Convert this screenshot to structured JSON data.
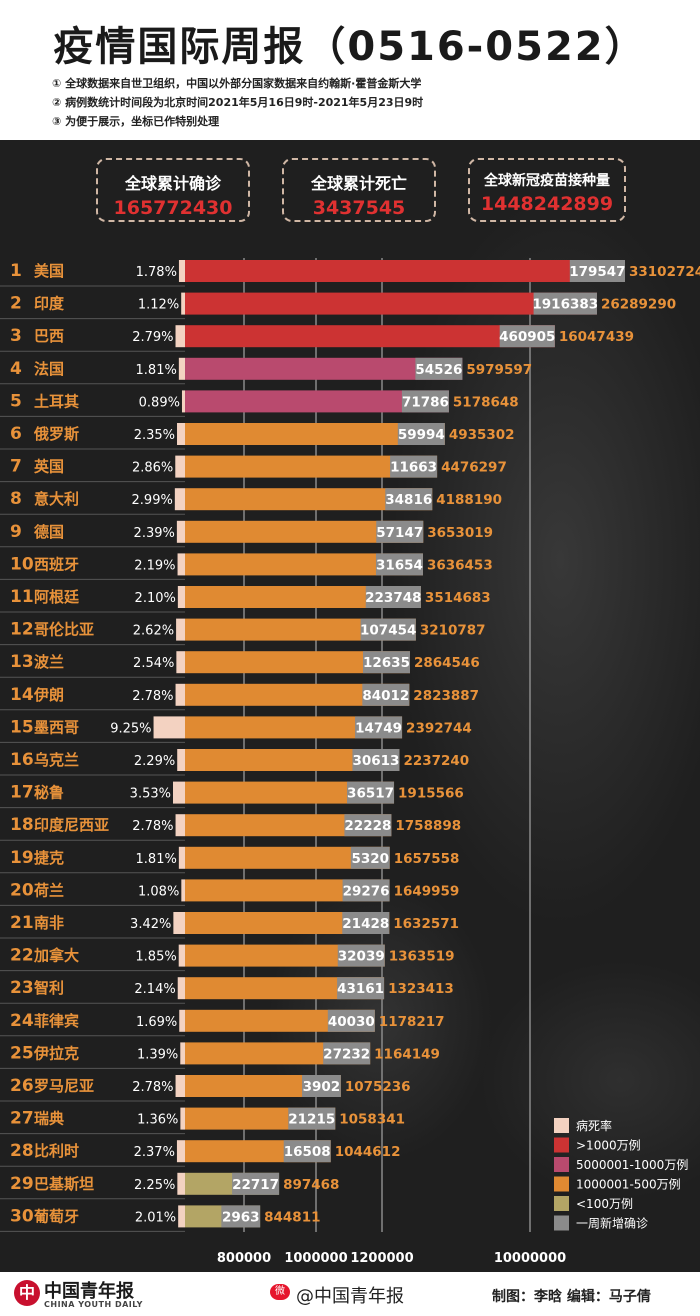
{
  "title": "疫情国际周报（0516-0522）",
  "notes": [
    "① 全球数据来自世卫组织，中国以外部分国家数据来自约翰斯·霍普金斯大学",
    "② 病例数统计时间段为北京时间2021年5月16日9时-2021年5月23日9时",
    "③ 为便于展示，坐标已作特别处理"
  ],
  "stats": [
    {
      "label": "全球累计确诊",
      "value": "165772430"
    },
    {
      "label": "全球累计死亡",
      "value": "3437545"
    },
    {
      "label": "全球新冠疫苗接种量",
      "value": "1448242899"
    }
  ],
  "colors": {
    "over10m": "#cc3333",
    "5m_10m": "#b94a6e",
    "1m_5m": "#e08a32",
    "under1m": "#b3a565",
    "weekly": "#8b8b8b",
    "death_rate": "#f3d2c1",
    "value_text": "#e8923a",
    "stat_value": "#e03131"
  },
  "chart_data": {
    "type": "bar",
    "x_ticks": [
      "800000",
      "1000000",
      "1200000",
      "10000000"
    ],
    "rows": [
      {
        "rank": "1",
        "country": "美国",
        "rate": "1.78%",
        "rate_value": 1.78,
        "weekly": "179547",
        "total": "33102724",
        "total_value": 33102724,
        "category": "over10m"
      },
      {
        "rank": "2",
        "country": "印度",
        "rate": "1.12%",
        "rate_value": 1.12,
        "weekly": "1916383",
        "total": "26289290",
        "total_value": 26289290,
        "category": "over10m"
      },
      {
        "rank": "3",
        "country": "巴西",
        "rate": "2.79%",
        "rate_value": 2.79,
        "weekly": "460905",
        "total": "16047439",
        "total_value": 16047439,
        "category": "over10m"
      },
      {
        "rank": "4",
        "country": "法国",
        "rate": "1.81%",
        "rate_value": 1.81,
        "weekly": "54526",
        "total": "5979597",
        "total_value": 5979597,
        "category": "5m_10m"
      },
      {
        "rank": "5",
        "country": "土耳其",
        "rate": "0.89%",
        "rate_value": 0.89,
        "weekly": "71786",
        "total": "5178648",
        "total_value": 5178648,
        "category": "5m_10m"
      },
      {
        "rank": "6",
        "country": "俄罗斯",
        "rate": "2.35%",
        "rate_value": 2.35,
        "weekly": "59994",
        "total": "4935302",
        "total_value": 4935302,
        "category": "1m_5m"
      },
      {
        "rank": "7",
        "country": "英国",
        "rate": "2.86%",
        "rate_value": 2.86,
        "weekly": "11663",
        "total": "4476297",
        "total_value": 4476297,
        "category": "1m_5m"
      },
      {
        "rank": "8",
        "country": "意大利",
        "rate": "2.99%",
        "rate_value": 2.99,
        "weekly": "34816",
        "total": "4188190",
        "total_value": 4188190,
        "category": "1m_5m"
      },
      {
        "rank": "9",
        "country": "德国",
        "rate": "2.39%",
        "rate_value": 2.39,
        "weekly": "57147",
        "total": "3653019",
        "total_value": 3653019,
        "category": "1m_5m"
      },
      {
        "rank": "10",
        "country": "西班牙",
        "rate": "2.19%",
        "rate_value": 2.19,
        "weekly": "31654",
        "total": "3636453",
        "total_value": 3636453,
        "category": "1m_5m"
      },
      {
        "rank": "11",
        "country": "阿根廷",
        "rate": "2.10%",
        "rate_value": 2.1,
        "weekly": "223748",
        "total": "3514683",
        "total_value": 3514683,
        "category": "1m_5m"
      },
      {
        "rank": "12",
        "country": "哥伦比亚",
        "rate": "2.62%",
        "rate_value": 2.62,
        "weekly": "107454",
        "total": "3210787",
        "total_value": 3210787,
        "category": "1m_5m"
      },
      {
        "rank": "13",
        "country": "波兰",
        "rate": "2.54%",
        "rate_value": 2.54,
        "weekly": "12635",
        "total": "2864546",
        "total_value": 2864546,
        "category": "1m_5m"
      },
      {
        "rank": "14",
        "country": "伊朗",
        "rate": "2.78%",
        "rate_value": 2.78,
        "weekly": "84012",
        "total": "2823887",
        "total_value": 2823887,
        "category": "1m_5m"
      },
      {
        "rank": "15",
        "country": "墨西哥",
        "rate": "9.25%",
        "rate_value": 9.25,
        "weekly": "14749",
        "total": "2392744",
        "total_value": 2392744,
        "category": "1m_5m"
      },
      {
        "rank": "16",
        "country": "乌克兰",
        "rate": "2.29%",
        "rate_value": 2.29,
        "weekly": "30613",
        "total": "2237240",
        "total_value": 2237240,
        "category": "1m_5m"
      },
      {
        "rank": "17",
        "country": "秘鲁",
        "rate": "3.53%",
        "rate_value": 3.53,
        "weekly": "36517",
        "total": "1915566",
        "total_value": 1915566,
        "category": "1m_5m"
      },
      {
        "rank": "18",
        "country": "印度尼西亚",
        "rate": "2.78%",
        "rate_value": 2.78,
        "weekly": "22228",
        "total": "1758898",
        "total_value": 1758898,
        "category": "1m_5m"
      },
      {
        "rank": "19",
        "country": "捷克",
        "rate": "1.81%",
        "rate_value": 1.81,
        "weekly": "5320",
        "total": "1657558",
        "total_value": 1657558,
        "category": "1m_5m"
      },
      {
        "rank": "20",
        "country": "荷兰",
        "rate": "1.08%",
        "rate_value": 1.08,
        "weekly": "29276",
        "total": "1649959",
        "total_value": 1649959,
        "category": "1m_5m"
      },
      {
        "rank": "21",
        "country": "南非",
        "rate": "3.42%",
        "rate_value": 3.42,
        "weekly": "21428",
        "total": "1632571",
        "total_value": 1632571,
        "category": "1m_5m"
      },
      {
        "rank": "22",
        "country": "加拿大",
        "rate": "1.85%",
        "rate_value": 1.85,
        "weekly": "32039",
        "total": "1363519",
        "total_value": 1363519,
        "category": "1m_5m"
      },
      {
        "rank": "23",
        "country": "智利",
        "rate": "2.14%",
        "rate_value": 2.14,
        "weekly": "43161",
        "total": "1323413",
        "total_value": 1323413,
        "category": "1m_5m"
      },
      {
        "rank": "24",
        "country": "菲律宾",
        "rate": "1.69%",
        "rate_value": 1.69,
        "weekly": "40030",
        "total": "1178217",
        "total_value": 1178217,
        "category": "1m_5m"
      },
      {
        "rank": "25",
        "country": "伊拉克",
        "rate": "1.39%",
        "rate_value": 1.39,
        "weekly": "27232",
        "total": "1164149",
        "total_value": 1164149,
        "category": "1m_5m"
      },
      {
        "rank": "26",
        "country": "罗马尼亚",
        "rate": "2.78%",
        "rate_value": 2.78,
        "weekly": "3902",
        "total": "1075236",
        "total_value": 1075236,
        "category": "1m_5m"
      },
      {
        "rank": "27",
        "country": "瑞典",
        "rate": "1.36%",
        "rate_value": 1.36,
        "weekly": "21215",
        "total": "1058341",
        "total_value": 1058341,
        "category": "1m_5m"
      },
      {
        "rank": "28",
        "country": "比利时",
        "rate": "2.37%",
        "rate_value": 2.37,
        "weekly": "16508",
        "total": "1044612",
        "total_value": 1044612,
        "category": "1m_5m"
      },
      {
        "rank": "29",
        "country": "巴基斯坦",
        "rate": "2.25%",
        "rate_value": 2.25,
        "weekly": "22717",
        "total": "897468",
        "total_value": 897468,
        "category": "under1m"
      },
      {
        "rank": "30",
        "country": "葡萄牙",
        "rate": "2.01%",
        "rate_value": 2.01,
        "weekly": "2963",
        "total": "844811",
        "total_value": 844811,
        "category": "under1m"
      }
    ],
    "legend": [
      {
        "key": "death_rate",
        "label": "病死率"
      },
      {
        "key": "over10m",
        "label": ">1000万例"
      },
      {
        "key": "5m_10m",
        "label": "5000001-1000万例"
      },
      {
        "key": "1m_5m",
        "label": "1000001-500万例"
      },
      {
        "key": "under1m",
        "label": "<100万例"
      },
      {
        "key": "weekly",
        "label": "一周新增确诊"
      }
    ]
  },
  "footer": {
    "logo_cn": "中国青年报",
    "logo_en": "CHINA YOUTH DAILY",
    "weibo": "@中国青年报",
    "credits": "制图：李晗  编辑：马子倩"
  }
}
